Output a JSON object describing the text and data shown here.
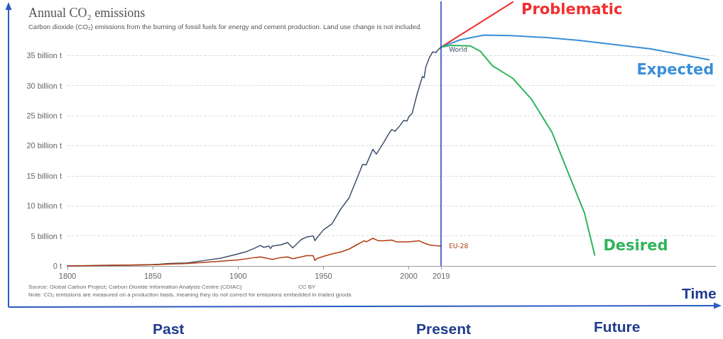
{
  "chart_data": {
    "type": "line",
    "title": "Annual CO₂ emissions",
    "subtitle": "Carbon dioxide (CO₂) emissions from the burning of fossil fuels for energy and cement production. Land use change is not included.",
    "xlabel": "Time",
    "xlim": [
      1800,
      2180
    ],
    "xticks": [
      1800,
      1850,
      1900,
      1950,
      2000,
      2019
    ],
    "ylim": [
      0,
      44
    ],
    "yticks": [
      {
        "value": 0,
        "label": "0 t"
      },
      {
        "value": 5,
        "label": "5 billion t"
      },
      {
        "value": 10,
        "label": "10 billion t"
      },
      {
        "value": 15,
        "label": "15 billion t"
      },
      {
        "value": 20,
        "label": "20 billion t"
      },
      {
        "value": 25,
        "label": "25 billion t"
      },
      {
        "value": 30,
        "label": "30 billion t"
      },
      {
        "value": 35,
        "label": "35 billion t"
      }
    ],
    "grid": "y",
    "legend": false,
    "line_style": "solid",
    "series": [
      {
        "name": "World",
        "color": "#3d4f6b",
        "x": [
          1800,
          1825,
          1850,
          1860,
          1870,
          1880,
          1890,
          1900,
          1905,
          1910,
          1913,
          1915,
          1918,
          1919,
          1920,
          1925,
          1929,
          1932,
          1937,
          1940,
          1944,
          1945,
          1946,
          1950,
          1955,
          1960,
          1965,
          1970,
          1973,
          1975,
          1979,
          1981,
          1985,
          1989,
          1990,
          1992,
          1995,
          1997,
          1999,
          2000,
          2002,
          2005,
          2008,
          2009,
          2010,
          2012,
          2014,
          2016,
          2017,
          2019
        ],
        "values": [
          0,
          0.1,
          0.2,
          0.4,
          0.5,
          0.9,
          1.3,
          2.0,
          2.4,
          3.0,
          3.4,
          3.1,
          3.3,
          2.9,
          3.3,
          3.5,
          3.9,
          3.0,
          4.4,
          4.8,
          5.0,
          4.2,
          4.6,
          6.0,
          7.0,
          9.4,
          11.3,
          14.8,
          16.9,
          16.8,
          19.4,
          18.6,
          20.4,
          22.3,
          22.7,
          22.4,
          23.4,
          24.2,
          24.1,
          24.8,
          25.4,
          28.7,
          31.5,
          31.3,
          33.1,
          34.6,
          35.6,
          35.5,
          35.9,
          36.4
        ]
      },
      {
        "name": "EU-28",
        "color": "#b13c0f",
        "x": [
          1800,
          1850,
          1870,
          1880,
          1890,
          1900,
          1910,
          1913,
          1918,
          1920,
          1925,
          1929,
          1932,
          1937,
          1940,
          1944,
          1945,
          1946,
          1950,
          1955,
          1960,
          1965,
          1970,
          1974,
          1975,
          1979,
          1982,
          1985,
          1990,
          1993,
          2000,
          2006,
          2009,
          2012,
          2015,
          2019
        ],
        "values": [
          0,
          0.2,
          0.4,
          0.6,
          0.8,
          1.0,
          1.4,
          1.5,
          1.2,
          1.1,
          1.4,
          1.5,
          1.2,
          1.5,
          1.7,
          1.7,
          0.9,
          1.2,
          1.6,
          2.0,
          2.3,
          2.8,
          3.6,
          4.2,
          4.0,
          4.6,
          4.2,
          4.2,
          4.3,
          4.0,
          4.0,
          4.2,
          3.8,
          3.5,
          3.4,
          3.3
        ]
      },
      {
        "name": "Problematic",
        "color": "#f03030",
        "x": [
          2019,
          2061
        ],
        "values": [
          36.4,
          43.9
        ]
      },
      {
        "name": "Expected",
        "color": "#3a8fd8",
        "x": [
          2019,
          2030,
          2044,
          2060,
          2080,
          2100,
          2142,
          2176
        ],
        "values": [
          36.4,
          37.6,
          38.4,
          38.3,
          38.0,
          37.5,
          36.1,
          34.3
        ]
      },
      {
        "name": "Desired",
        "color": "#2fb55a",
        "x": [
          2019,
          2025,
          2036,
          2042,
          2049,
          2061,
          2072,
          2084,
          2094,
          2103,
          2109
        ],
        "values": [
          36.4,
          36.7,
          36.6,
          35.7,
          33.3,
          31.2,
          27.7,
          22.2,
          15.1,
          8.8,
          1.8
        ]
      }
    ],
    "ref_lines": [
      {
        "axis": "x",
        "value": 2019,
        "color": "#1c3cb4"
      }
    ],
    "annotations": [
      "Past",
      "Present",
      "Future",
      "Source: Global Carbon Project; Carbon Dioxide Information Analysis Centre (CDIAC)",
      "CC BY",
      "Note: CO₂ emissions are measured on a production basis, meaning they do not correct for emissions embedded in traded goods."
    ]
  }
}
